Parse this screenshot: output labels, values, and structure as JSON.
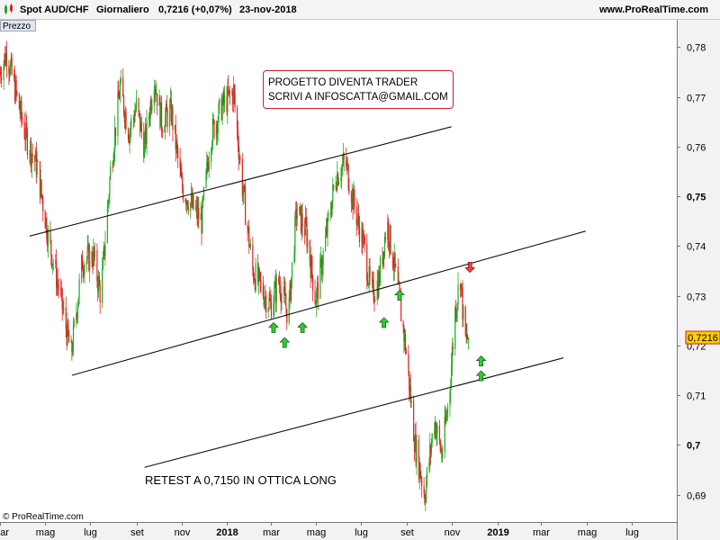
{
  "header": {
    "symbol": "Spot AUD/CHF",
    "period": "Giornaliero",
    "last": "0,7216 (+0,07%)",
    "date": "23-nov-2018",
    "site": "www.ProRealTime.com"
  },
  "panel_label": "Prezzo",
  "annotations": {
    "note_line1": "PROGETTO DIVENTA TRADER",
    "note_line2": "SCRIVI A INFOSCATTA@GMAIL.COM",
    "retest": "RETEST A 0,7150 IN OTTICA LONG"
  },
  "copyright": "© ProRealTime.com",
  "colors": {
    "up": "#22aa22",
    "down": "#dd2222",
    "last_price_tag": "#ffcc00",
    "price_tag_border": "#cc2222",
    "plot_background": "#ffffff",
    "axis_background": "#f2f2f2"
  },
  "chart_data": {
    "type": "candlestick",
    "y_axis_side": "right",
    "ylim": [
      0.6845,
      0.7855
    ],
    "yticks": [
      0.69,
      0.7,
      0.71,
      0.72,
      0.73,
      0.74,
      0.75,
      0.76,
      0.77,
      0.78
    ],
    "ytick_labels": [
      "0,69",
      "0,7",
      "0,71",
      "0,72",
      "0,73",
      "0,74",
      "0,75",
      "0,76",
      "0,77",
      "0,78"
    ],
    "bold_ytick_labels": [
      "0,7",
      "0,75"
    ],
    "x_start": "2017-03-01",
    "x_end": "2019-08-31",
    "xticks": [
      {
        "date": "2017-03-01",
        "label": "mar",
        "bold": false
      },
      {
        "date": "2017-05-01",
        "label": "mag",
        "bold": false
      },
      {
        "date": "2017-07-01",
        "label": "lug",
        "bold": false
      },
      {
        "date": "2017-09-01",
        "label": "set",
        "bold": false
      },
      {
        "date": "2017-11-01",
        "label": "nov",
        "bold": false
      },
      {
        "date": "2018-01-01",
        "label": "2018",
        "bold": true
      },
      {
        "date": "2018-03-01",
        "label": "mar",
        "bold": false
      },
      {
        "date": "2018-05-01",
        "label": "mag",
        "bold": false
      },
      {
        "date": "2018-07-01",
        "label": "lug",
        "bold": false
      },
      {
        "date": "2018-09-01",
        "label": "set",
        "bold": false
      },
      {
        "date": "2018-11-01",
        "label": "nov",
        "bold": false
      },
      {
        "date": "2019-01-01",
        "label": "2019",
        "bold": true
      },
      {
        "date": "2019-03-01",
        "label": "mar",
        "bold": false
      },
      {
        "date": "2019-05-01",
        "label": "mag",
        "bold": false
      },
      {
        "date": "2019-07-01",
        "label": "lug",
        "bold": false
      }
    ],
    "last_price": 0.7216,
    "last_price_label": "0,7216",
    "close_path": [
      [
        "2017-03-01",
        0.775
      ],
      [
        "2017-03-10",
        0.779
      ],
      [
        "2017-03-22",
        0.771
      ],
      [
        "2017-04-05",
        0.762
      ],
      [
        "2017-04-20",
        0.756
      ],
      [
        "2017-05-05",
        0.742
      ],
      [
        "2017-05-20",
        0.731
      ],
      [
        "2017-06-05",
        0.718
      ],
      [
        "2017-06-20",
        0.737
      ],
      [
        "2017-07-05",
        0.738
      ],
      [
        "2017-07-15",
        0.73
      ],
      [
        "2017-07-28",
        0.755
      ],
      [
        "2017-08-10",
        0.772
      ],
      [
        "2017-08-22",
        0.763
      ],
      [
        "2017-09-01",
        0.768
      ],
      [
        "2017-09-12",
        0.76
      ],
      [
        "2017-09-25",
        0.774
      ],
      [
        "2017-10-05",
        0.765
      ],
      [
        "2017-10-18",
        0.767
      ],
      [
        "2017-11-01",
        0.752
      ],
      [
        "2017-11-15",
        0.748
      ],
      [
        "2017-11-28",
        0.745
      ],
      [
        "2017-12-10",
        0.762
      ],
      [
        "2017-12-25",
        0.768
      ],
      [
        "2018-01-10",
        0.771
      ],
      [
        "2018-01-22",
        0.752
      ],
      [
        "2018-02-05",
        0.735
      ],
      [
        "2018-02-18",
        0.731
      ],
      [
        "2018-03-01",
        0.728
      ],
      [
        "2018-03-12",
        0.733
      ],
      [
        "2018-03-25",
        0.726
      ],
      [
        "2018-04-05",
        0.747
      ],
      [
        "2018-04-18",
        0.743
      ],
      [
        "2018-05-01",
        0.729
      ],
      [
        "2018-05-15",
        0.742
      ],
      [
        "2018-05-28",
        0.754
      ],
      [
        "2018-06-10",
        0.757
      ],
      [
        "2018-06-22",
        0.748
      ],
      [
        "2018-07-05",
        0.74
      ],
      [
        "2018-07-15",
        0.73
      ],
      [
        "2018-07-25",
        0.733
      ],
      [
        "2018-08-05",
        0.745
      ],
      [
        "2018-08-18",
        0.733
      ],
      [
        "2018-08-30",
        0.72
      ],
      [
        "2018-09-12",
        0.7
      ],
      [
        "2018-09-25",
        0.69
      ],
      [
        "2018-10-08",
        0.705
      ],
      [
        "2018-10-18",
        0.698
      ],
      [
        "2018-10-28",
        0.71
      ],
      [
        "2018-11-05",
        0.727
      ],
      [
        "2018-11-12",
        0.734
      ],
      [
        "2018-11-18",
        0.721
      ],
      [
        "2018-11-23",
        0.7216
      ]
    ],
    "trendlines": [
      {
        "x1": "2017-04-10",
        "y1": 0.742,
        "x2": "2018-10-31",
        "y2": 0.764
      },
      {
        "x1": "2017-06-06",
        "y1": 0.714,
        "x2": "2019-04-30",
        "y2": 0.743
      },
      {
        "x1": "2017-09-12",
        "y1": 0.6955,
        "x2": "2019-03-31",
        "y2": 0.7175
      }
    ],
    "signals": [
      {
        "date": "2018-03-05",
        "price": 0.7235,
        "dir": "up"
      },
      {
        "date": "2018-03-20",
        "price": 0.7205,
        "dir": "up"
      },
      {
        "date": "2018-04-13",
        "price": 0.7235,
        "dir": "up"
      },
      {
        "date": "2018-08-01",
        "price": 0.7245,
        "dir": "up"
      },
      {
        "date": "2018-08-22",
        "price": 0.73,
        "dir": "up"
      },
      {
        "date": "2018-11-25",
        "price": 0.7358,
        "dir": "down"
      },
      {
        "date": "2018-12-10",
        "price": 0.7168,
        "dir": "up"
      },
      {
        "date": "2018-12-10",
        "price": 0.7138,
        "dir": "up"
      }
    ]
  }
}
